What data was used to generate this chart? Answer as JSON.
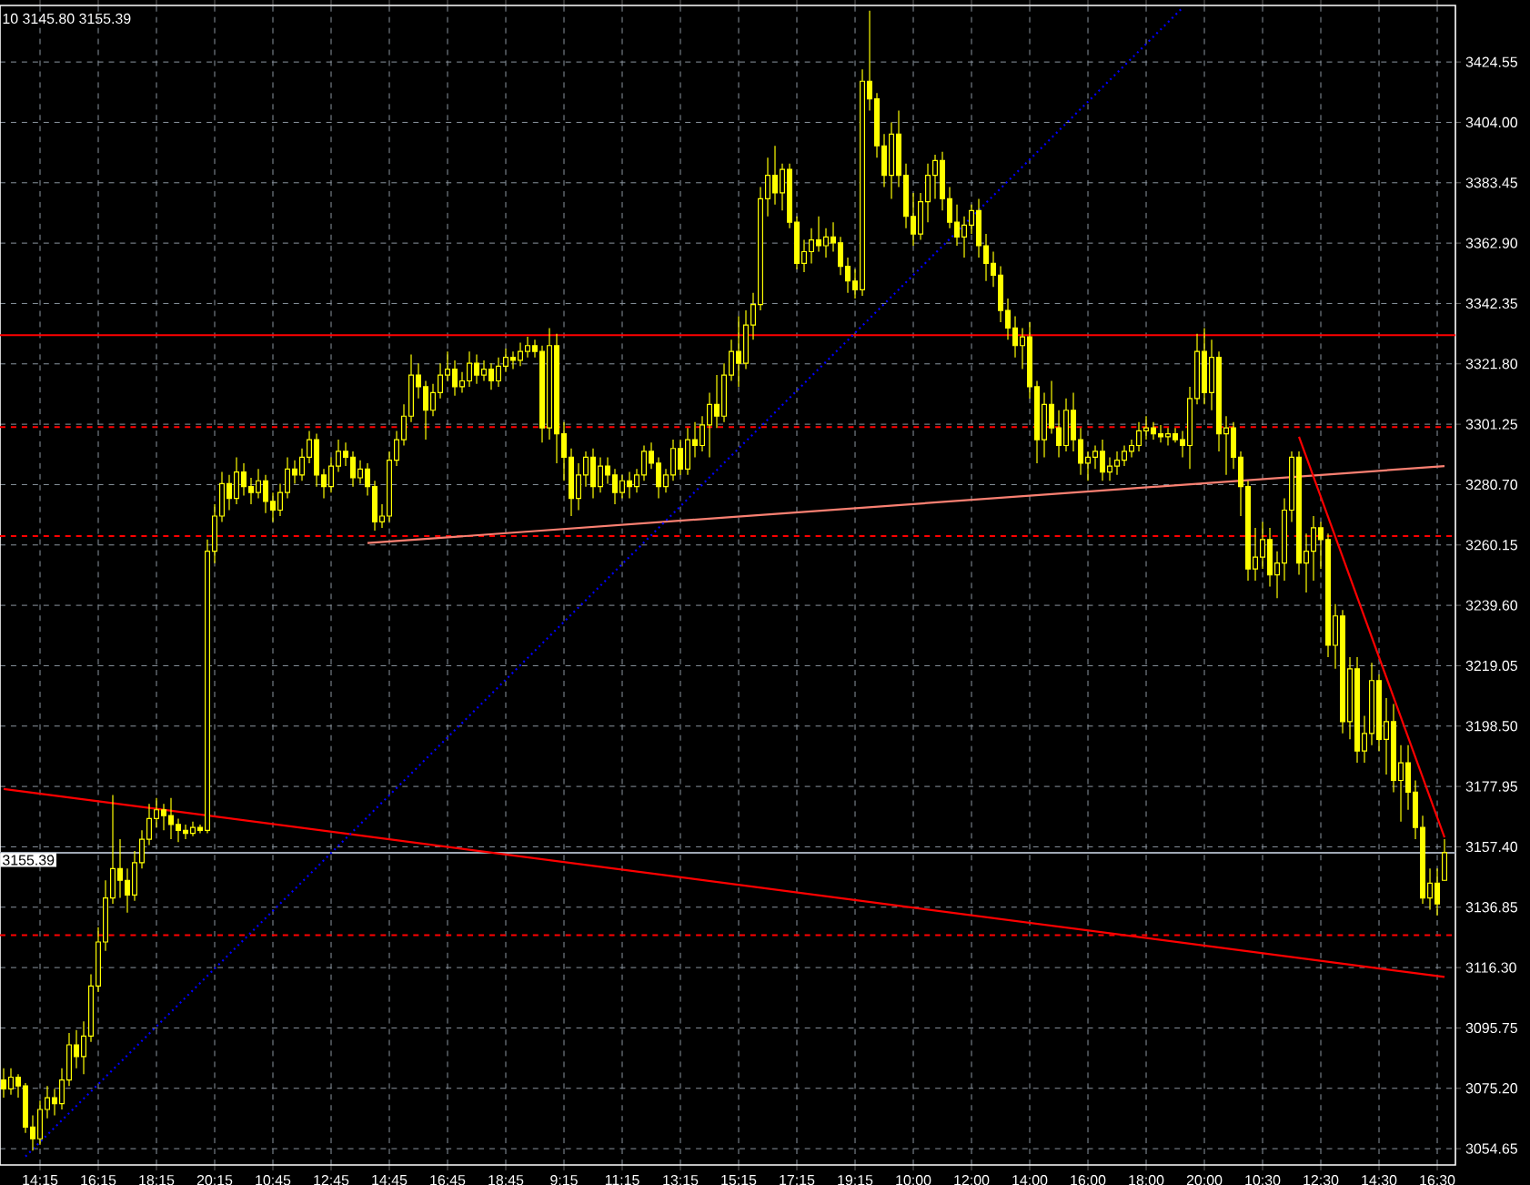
{
  "chart_data": {
    "type": "candlestick",
    "color": "#ffff00",
    "categories": [
      null,
      null,
      null,
      null,
      null,
      "14:15",
      null,
      null,
      null,
      null,
      null,
      null,
      null,
      "16:15",
      null,
      null,
      null,
      null,
      null,
      null,
      null,
      "18:15",
      null,
      null,
      null,
      null,
      null,
      null,
      null,
      "20:15",
      null,
      null,
      null,
      null,
      null,
      null,
      null,
      "10:45",
      null,
      null,
      null,
      null,
      null,
      null,
      null,
      "12:45",
      null,
      null,
      null,
      null,
      null,
      null,
      null,
      "14:45",
      null,
      null,
      null,
      null,
      null,
      null,
      null,
      "16:45",
      null,
      null,
      null,
      null,
      null,
      null,
      null,
      "18:45",
      null,
      null,
      null,
      null,
      null,
      null,
      null,
      "9:15",
      null,
      null,
      null,
      null,
      null,
      null,
      null,
      "11:15",
      null,
      null,
      null,
      null,
      null,
      null,
      null,
      "13:15",
      null,
      null,
      null,
      null,
      null,
      null,
      null,
      "15:15",
      null,
      null,
      null,
      null,
      null,
      null,
      null,
      "17:15",
      null,
      null,
      null,
      null,
      null,
      null,
      null,
      "19:15",
      null,
      null,
      null,
      null,
      null,
      null,
      null,
      "10:00",
      null,
      null,
      null,
      null,
      null,
      null,
      null,
      "12:00",
      null,
      null,
      null,
      null,
      null,
      null,
      null,
      "14:00",
      null,
      null,
      null,
      null,
      null,
      null,
      null,
      "16:00",
      null,
      null,
      null,
      null,
      null,
      null,
      null,
      "18:00",
      null,
      null,
      null,
      null,
      null,
      null,
      null,
      "20:00",
      null,
      null,
      null,
      null,
      null,
      null,
      null,
      "10:30",
      null,
      null,
      null,
      null,
      null,
      null,
      null,
      "12:30",
      null,
      null,
      null,
      null,
      null,
      null,
      null,
      "14:30",
      null,
      null,
      null,
      null,
      null,
      null,
      null,
      "16:30",
      null
    ],
    "ohlc": [
      [
        3078,
        3082,
        3072,
        3075
      ],
      [
        3075,
        3082,
        3073,
        3079
      ],
      [
        3079,
        3080,
        3072,
        3076
      ],
      [
        3076,
        3077,
        3060,
        3062
      ],
      [
        3062,
        3066,
        3054,
        3058
      ],
      [
        3058,
        3071,
        3056,
        3068
      ],
      [
        3068,
        3076,
        3065,
        3072
      ],
      [
        3072,
        3075,
        3066,
        3070
      ],
      [
        3070,
        3082,
        3068,
        3078
      ],
      [
        3078,
        3094,
        3076,
        3090
      ],
      [
        3090,
        3095,
        3082,
        3086
      ],
      [
        3086,
        3098,
        3080,
        3093
      ],
      [
        3093,
        3114,
        3091,
        3110
      ],
      [
        3110,
        3130,
        3108,
        3125
      ],
      [
        3125,
        3146,
        3122,
        3140
      ],
      [
        3140,
        3175,
        3138,
        3150
      ],
      [
        3150,
        3160,
        3140,
        3146
      ],
      [
        3146,
        3150,
        3135,
        3141
      ],
      [
        3141,
        3156,
        3139,
        3152
      ],
      [
        3152,
        3163,
        3150,
        3160
      ],
      [
        3160,
        3172,
        3158,
        3167
      ],
      [
        3167,
        3174,
        3164,
        3170
      ],
      [
        3170,
        3172,
        3163,
        3168
      ],
      [
        3168,
        3174,
        3160,
        3165
      ],
      [
        3165,
        3167,
        3159,
        3163
      ],
      [
        3163,
        3165,
        3160,
        3162
      ],
      [
        3162,
        3166,
        3161,
        3164
      ],
      [
        3164,
        3165,
        3162,
        3163
      ],
      [
        3163,
        3262,
        3162,
        3258
      ],
      [
        3258,
        3274,
        3254,
        3270
      ],
      [
        3270,
        3285,
        3268,
        3281
      ],
      [
        3281,
        3284,
        3272,
        3276
      ],
      [
        3276,
        3290,
        3274,
        3285
      ],
      [
        3285,
        3288,
        3277,
        3280
      ],
      [
        3280,
        3283,
        3274,
        3278
      ],
      [
        3278,
        3286,
        3276,
        3282
      ],
      [
        3282,
        3284,
        3271,
        3275
      ],
      [
        3275,
        3278,
        3268,
        3272
      ],
      [
        3272,
        3281,
        3270,
        3278
      ],
      [
        3278,
        3290,
        3276,
        3286
      ],
      [
        3286,
        3289,
        3281,
        3284
      ],
      [
        3284,
        3293,
        3282,
        3290
      ],
      [
        3290,
        3299,
        3288,
        3296
      ],
      [
        3296,
        3298,
        3280,
        3284
      ],
      [
        3284,
        3286,
        3276,
        3280
      ],
      [
        3280,
        3290,
        3278,
        3287
      ],
      [
        3287,
        3296,
        3285,
        3292
      ],
      [
        3292,
        3295,
        3287,
        3290
      ],
      [
        3290,
        3292,
        3280,
        3283
      ],
      [
        3283,
        3289,
        3281,
        3286
      ],
      [
        3286,
        3288,
        3277,
        3280
      ],
      [
        3280,
        3282,
        3265,
        3268
      ],
      [
        3268,
        3274,
        3266,
        3270
      ],
      [
        3270,
        3292,
        3268,
        3289
      ],
      [
        3289,
        3299,
        3287,
        3296
      ],
      [
        3296,
        3308,
        3294,
        3304
      ],
      [
        3304,
        3325,
        3302,
        3318
      ],
      [
        3318,
        3322,
        3310,
        3314
      ],
      [
        3314,
        3316,
        3296,
        3306
      ],
      [
        3306,
        3315,
        3304,
        3312
      ],
      [
        3312,
        3322,
        3310,
        3318
      ],
      [
        3318,
        3326,
        3316,
        3320
      ],
      [
        3320,
        3323,
        3311,
        3314
      ],
      [
        3314,
        3319,
        3312,
        3316
      ],
      [
        3316,
        3326,
        3314,
        3322
      ],
      [
        3322,
        3325,
        3315,
        3318
      ],
      [
        3318,
        3323,
        3316,
        3320
      ],
      [
        3320,
        3322,
        3313,
        3316
      ],
      [
        3316,
        3324,
        3314,
        3321
      ],
      [
        3321,
        3327,
        3319,
        3324
      ],
      [
        3324,
        3326,
        3320,
        3323
      ],
      [
        3323,
        3329,
        3321,
        3326
      ],
      [
        3326,
        3331,
        3324,
        3328
      ],
      [
        3328,
        3330,
        3324,
        3326
      ],
      [
        3326,
        3328,
        3295,
        3300
      ],
      [
        3300,
        3334,
        3296,
        3328
      ],
      [
        3328,
        3332,
        3288,
        3298
      ],
      [
        3298,
        3302,
        3282,
        3290
      ],
      [
        3290,
        3293,
        3270,
        3276
      ],
      [
        3276,
        3288,
        3272,
        3284
      ],
      [
        3284,
        3292,
        3280,
        3290
      ],
      [
        3290,
        3293,
        3276,
        3280
      ],
      [
        3280,
        3290,
        3278,
        3287
      ],
      [
        3287,
        3290,
        3281,
        3284
      ],
      [
        3284,
        3286,
        3274,
        3278
      ],
      [
        3278,
        3284,
        3276,
        3282
      ],
      [
        3282,
        3285,
        3276,
        3280
      ],
      [
        3280,
        3286,
        3278,
        3284
      ],
      [
        3284,
        3294,
        3282,
        3292
      ],
      [
        3292,
        3295,
        3286,
        3288
      ],
      [
        3288,
        3290,
        3276,
        3280
      ],
      [
        3280,
        3286,
        3278,
        3284
      ],
      [
        3284,
        3296,
        3282,
        3293
      ],
      [
        3293,
        3296,
        3284,
        3286
      ],
      [
        3286,
        3300,
        3284,
        3296
      ],
      [
        3296,
        3302,
        3290,
        3294
      ],
      [
        3294,
        3304,
        3292,
        3301
      ],
      [
        3301,
        3312,
        3290,
        3308
      ],
      [
        3308,
        3318,
        3300,
        3304
      ],
      [
        3304,
        3322,
        3302,
        3318
      ],
      [
        3318,
        3330,
        3316,
        3326
      ],
      [
        3326,
        3338,
        3314,
        3322
      ],
      [
        3322,
        3340,
        3320,
        3335
      ],
      [
        3335,
        3346,
        3330,
        3342
      ],
      [
        3342,
        3382,
        3340,
        3378
      ],
      [
        3378,
        3392,
        3372,
        3386
      ],
      [
        3386,
        3396,
        3376,
        3380
      ],
      [
        3380,
        3390,
        3374,
        3388
      ],
      [
        3388,
        3390,
        3368,
        3370
      ],
      [
        3370,
        3372,
        3354,
        3356
      ],
      [
        3356,
        3364,
        3353,
        3360
      ],
      [
        3360,
        3368,
        3356,
        3364
      ],
      [
        3364,
        3372,
        3360,
        3362
      ],
      [
        3362,
        3368,
        3358,
        3365
      ],
      [
        3365,
        3370,
        3360,
        3363
      ],
      [
        3363,
        3365,
        3352,
        3355
      ],
      [
        3355,
        3358,
        3346,
        3350
      ],
      [
        3350,
        3354,
        3344,
        3347
      ],
      [
        3347,
        3422,
        3345,
        3418
      ],
      [
        3418,
        3442,
        3408,
        3412
      ],
      [
        3412,
        3414,
        3392,
        3396
      ],
      [
        3396,
        3400,
        3382,
        3386
      ],
      [
        3386,
        3404,
        3378,
        3400
      ],
      [
        3400,
        3408,
        3382,
        3386
      ],
      [
        3386,
        3390,
        3368,
        3372
      ],
      [
        3372,
        3380,
        3362,
        3366
      ],
      [
        3366,
        3380,
        3364,
        3377
      ],
      [
        3377,
        3390,
        3370,
        3386
      ],
      [
        3386,
        3393,
        3378,
        3391
      ],
      [
        3391,
        3394,
        3374,
        3378
      ],
      [
        3378,
        3382,
        3368,
        3370
      ],
      [
        3370,
        3376,
        3362,
        3365
      ],
      [
        3365,
        3372,
        3358,
        3369
      ],
      [
        3369,
        3376,
        3366,
        3374
      ],
      [
        3374,
        3378,
        3358,
        3362
      ],
      [
        3362,
        3366,
        3350,
        3356
      ],
      [
        3356,
        3360,
        3348,
        3352
      ],
      [
        3352,
        3355,
        3336,
        3340
      ],
      [
        3340,
        3344,
        3330,
        3334
      ],
      [
        3334,
        3338,
        3324,
        3328
      ],
      [
        3328,
        3334,
        3320,
        3331
      ],
      [
        3331,
        3336,
        3310,
        3314
      ],
      [
        3314,
        3316,
        3288,
        3296
      ],
      [
        3296,
        3312,
        3290,
        3308
      ],
      [
        3308,
        3316,
        3298,
        3300
      ],
      [
        3300,
        3306,
        3290,
        3294
      ],
      [
        3294,
        3310,
        3292,
        3306
      ],
      [
        3306,
        3312,
        3292,
        3296
      ],
      [
        3296,
        3300,
        3284,
        3288
      ],
      [
        3288,
        3292,
        3282,
        3290
      ],
      [
        3290,
        3294,
        3286,
        3292
      ],
      [
        3292,
        3296,
        3282,
        3285
      ],
      [
        3285,
        3290,
        3282,
        3287
      ],
      [
        3287,
        3292,
        3284,
        3289
      ],
      [
        3289,
        3294,
        3287,
        3292
      ],
      [
        3292,
        3296,
        3290,
        3294
      ],
      [
        3294,
        3302,
        3292,
        3299
      ],
      [
        3299,
        3304,
        3296,
        3300
      ],
      [
        3300,
        3302,
        3296,
        3298
      ],
      [
        3298,
        3301,
        3295,
        3297
      ],
      [
        3297,
        3300,
        3294,
        3298
      ],
      [
        3298,
        3300,
        3295,
        3296
      ],
      [
        3296,
        3299,
        3290,
        3294
      ],
      [
        3294,
        3314,
        3286,
        3310
      ],
      [
        3310,
        3332,
        3308,
        3326
      ],
      [
        3326,
        3334,
        3308,
        3312
      ],
      [
        3312,
        3330,
        3306,
        3324
      ],
      [
        3324,
        3326,
        3292,
        3298
      ],
      [
        3298,
        3304,
        3284,
        3300
      ],
      [
        3300,
        3302,
        3286,
        3290
      ],
      [
        3290,
        3292,
        3270,
        3280
      ],
      [
        3280,
        3282,
        3248,
        3252
      ],
      [
        3252,
        3266,
        3248,
        3256
      ],
      [
        3256,
        3268,
        3252,
        3262
      ],
      [
        3262,
        3266,
        3246,
        3250
      ],
      [
        3250,
        3258,
        3242,
        3254
      ],
      [
        3254,
        3276,
        3248,
        3272
      ],
      [
        3272,
        3292,
        3268,
        3290
      ],
      [
        3290,
        3292,
        3250,
        3254
      ],
      [
        3254,
        3264,
        3244,
        3258
      ],
      [
        3258,
        3270,
        3248,
        3266
      ],
      [
        3266,
        3268,
        3252,
        3262
      ],
      [
        3262,
        3264,
        3222,
        3226
      ],
      [
        3226,
        3240,
        3218,
        3236
      ],
      [
        3236,
        3238,
        3196,
        3200
      ],
      [
        3200,
        3222,
        3194,
        3218
      ],
      [
        3218,
        3222,
        3186,
        3190
      ],
      [
        3190,
        3202,
        3186,
        3196
      ],
      [
        3196,
        3220,
        3192,
        3214
      ],
      [
        3214,
        3216,
        3190,
        3194
      ],
      [
        3194,
        3208,
        3182,
        3200
      ],
      [
        3200,
        3206,
        3176,
        3180
      ],
      [
        3180,
        3192,
        3166,
        3186
      ],
      [
        3186,
        3192,
        3170,
        3176
      ],
      [
        3176,
        3180,
        3160,
        3164
      ],
      [
        3164,
        3168,
        3138,
        3140
      ],
      [
        3140,
        3150,
        3136,
        3145
      ],
      [
        3145,
        3150,
        3134,
        3138
      ],
      [
        3146,
        3160,
        3145.8,
        3155.39
      ]
    ],
    "series": [
      {
        "type": "line",
        "color": "#ff0000",
        "line_style": "solid",
        "values": [
          3177.1,
          null,
          null,
          null,
          null,
          null,
          null,
          null,
          null,
          null,
          null,
          null,
          null,
          null,
          null,
          null,
          null,
          null,
          null,
          null,
          null,
          null,
          null,
          null,
          null,
          null,
          null,
          null,
          null,
          null,
          null,
          null,
          null,
          null,
          null,
          null,
          null,
          null,
          null,
          null,
          null,
          null,
          null,
          null,
          null,
          null,
          null,
          null,
          null,
          null,
          null,
          null,
          null,
          null,
          null,
          null,
          null,
          null,
          null,
          null,
          null,
          null,
          null,
          null,
          null,
          null,
          null,
          null,
          null,
          null,
          null,
          null,
          null,
          null,
          null,
          null,
          null,
          null,
          null,
          null,
          null,
          null,
          null,
          null,
          null,
          null,
          null,
          null,
          null,
          null,
          null,
          null,
          null,
          null,
          null,
          null,
          null,
          null,
          null,
          null,
          null,
          null,
          null,
          null,
          null,
          null,
          null,
          null,
          null,
          null,
          null,
          null,
          null,
          null,
          null,
          null,
          null,
          null,
          null,
          null,
          null,
          null,
          null,
          null,
          null,
          null,
          null,
          null,
          null,
          null,
          null,
          null,
          null,
          null,
          null,
          null,
          null,
          null,
          null,
          null,
          null,
          null,
          null,
          null,
          null,
          null,
          null,
          null,
          null,
          null,
          null,
          null,
          null,
          null,
          null,
          null,
          null,
          null,
          null,
          null,
          null,
          null,
          null,
          null,
          null,
          null,
          null,
          null,
          null,
          null,
          null,
          null,
          null,
          null,
          null,
          null,
          null,
          null,
          null,
          null,
          null,
          null,
          null,
          null,
          null,
          null,
          null,
          null,
          null,
          null,
          null,
          null,
          null,
          null,
          null,
          null,
          null,
          null,
          3113.1
        ]
      },
      {
        "type": "line",
        "color": "#fa8072",
        "line_style": "solid",
        "values": [
          null,
          null,
          null,
          null,
          null,
          null,
          null,
          null,
          null,
          null,
          null,
          null,
          null,
          null,
          null,
          null,
          null,
          null,
          null,
          null,
          null,
          null,
          null,
          null,
          null,
          null,
          null,
          null,
          null,
          null,
          null,
          null,
          null,
          null,
          null,
          null,
          null,
          null,
          null,
          null,
          null,
          null,
          null,
          null,
          null,
          null,
          null,
          null,
          null,
          null,
          3260.8,
          null,
          null,
          null,
          null,
          null,
          null,
          null,
          null,
          null,
          null,
          null,
          null,
          null,
          null,
          null,
          null,
          null,
          null,
          null,
          null,
          null,
          null,
          null,
          null,
          null,
          null,
          null,
          null,
          null,
          null,
          null,
          null,
          null,
          null,
          null,
          null,
          null,
          null,
          null,
          null,
          null,
          null,
          null,
          null,
          null,
          null,
          null,
          null,
          null,
          null,
          null,
          null,
          null,
          null,
          null,
          null,
          null,
          null,
          null,
          null,
          null,
          null,
          null,
          null,
          null,
          null,
          null,
          null,
          null,
          null,
          null,
          null,
          null,
          null,
          null,
          null,
          null,
          null,
          null,
          null,
          null,
          null,
          null,
          null,
          null,
          null,
          null,
          null,
          null,
          null,
          null,
          null,
          null,
          null,
          null,
          null,
          null,
          null,
          null,
          null,
          null,
          null,
          null,
          null,
          null,
          null,
          null,
          null,
          null,
          null,
          null,
          null,
          null,
          null,
          null,
          null,
          null,
          null,
          null,
          null,
          null,
          null,
          null,
          null,
          null,
          null,
          null,
          null,
          null,
          null,
          null,
          null,
          null,
          null,
          null,
          null,
          null,
          null,
          null,
          null,
          null,
          null,
          null,
          null,
          null,
          null,
          null,
          3287.0
        ]
      },
      {
        "type": "line",
        "color": "#0000ff",
        "line_style": "dotted",
        "values": [
          null,
          null,
          null,
          3052,
          null,
          null,
          null,
          null,
          null,
          null,
          null,
          null,
          null,
          null,
          null,
          null,
          null,
          null,
          null,
          null,
          null,
          null,
          null,
          null,
          null,
          null,
          null,
          null,
          null,
          null,
          null,
          null,
          null,
          null,
          null,
          null,
          null,
          null,
          null,
          null,
          null,
          null,
          null,
          null,
          null,
          null,
          null,
          null,
          null,
          null,
          null,
          null,
          null,
          null,
          null,
          null,
          null,
          null,
          null,
          null,
          null,
          null,
          null,
          null,
          null,
          null,
          null,
          null,
          null,
          null,
          null,
          null,
          null,
          null,
          null,
          null,
          null,
          null,
          null,
          null,
          null,
          null,
          null,
          null,
          null,
          null,
          null,
          null,
          null,
          null,
          null,
          null,
          null,
          null,
          null,
          null,
          null,
          null,
          null,
          null,
          null,
          null,
          null,
          null,
          null,
          null,
          null,
          null,
          null,
          null,
          null,
          null,
          null,
          null,
          null,
          null,
          null,
          null,
          null,
          null,
          null,
          null,
          null,
          null,
          null,
          null,
          null,
          null,
          null,
          null,
          null,
          null,
          null,
          null,
          null,
          null,
          null,
          null,
          null,
          null,
          null,
          null,
          null,
          null,
          null,
          null,
          null,
          null,
          null,
          null,
          null,
          null,
          null,
          null,
          null,
          null,
          null,
          null,
          null,
          null,
          null,
          null,
          3443,
          null,
          null,
          null,
          null,
          null,
          null,
          null,
          null,
          null,
          null,
          null,
          null,
          null,
          null,
          null,
          null,
          null,
          null,
          null,
          null,
          null,
          null,
          null,
          null,
          null,
          null,
          null,
          null,
          null,
          null,
          null,
          null,
          null,
          null,
          null,
          null
        ]
      },
      {
        "type": "line",
        "color": "#ff0000",
        "line_style": "solid",
        "values": [
          null,
          null,
          null,
          null,
          null,
          null,
          null,
          null,
          null,
          null,
          null,
          null,
          null,
          null,
          null,
          null,
          null,
          null,
          null,
          null,
          null,
          null,
          null,
          null,
          null,
          null,
          null,
          null,
          null,
          null,
          null,
          null,
          null,
          null,
          null,
          null,
          null,
          null,
          null,
          null,
          null,
          null,
          null,
          null,
          null,
          null,
          null,
          null,
          null,
          null,
          null,
          null,
          null,
          null,
          null,
          null,
          null,
          null,
          null,
          null,
          null,
          null,
          null,
          null,
          null,
          null,
          null,
          null,
          null,
          null,
          null,
          null,
          null,
          null,
          null,
          null,
          null,
          null,
          null,
          null,
          null,
          null,
          null,
          null,
          null,
          null,
          null,
          null,
          null,
          null,
          null,
          null,
          null,
          null,
          null,
          null,
          null,
          null,
          null,
          null,
          null,
          null,
          null,
          null,
          null,
          null,
          null,
          null,
          null,
          null,
          null,
          null,
          null,
          null,
          null,
          null,
          null,
          null,
          null,
          null,
          null,
          null,
          null,
          null,
          null,
          null,
          null,
          null,
          null,
          null,
          null,
          null,
          null,
          null,
          null,
          null,
          null,
          null,
          null,
          null,
          null,
          null,
          null,
          null,
          null,
          null,
          null,
          null,
          null,
          null,
          null,
          null,
          null,
          null,
          null,
          null,
          null,
          null,
          null,
          null,
          null,
          null,
          null,
          null,
          null,
          null,
          null,
          null,
          null,
          null,
          null,
          null,
          null,
          null,
          null,
          null,
          null,
          null,
          3297,
          null,
          null,
          null,
          null,
          null,
          null,
          null,
          null,
          null,
          null,
          null,
          null,
          null,
          null,
          null,
          null,
          null,
          null,
          null,
          3160.6
        ]
      }
    ],
    "ylim": [
      3049.1,
      3443.8
    ],
    "yticks": [
      3054.65,
      {
        "value": 3075.2,
        "label": "3075.20"
      },
      3095.75,
      {
        "value": 3116.3,
        "label": "3116.30"
      },
      3136.85,
      {
        "value": 3157.4,
        "label": "3157.40"
      },
      3177.95,
      {
        "value": 3198.5,
        "label": "3198.50"
      },
      3219.05,
      {
        "value": 3239.6,
        "label": "3239.60"
      },
      3260.15,
      {
        "value": 3280.7,
        "label": "3280.70"
      },
      3301.25,
      {
        "value": 3321.8,
        "label": "3321.80"
      },
      3342.35,
      {
        "value": 3362.9,
        "label": "3362.90"
      },
      3383.45,
      {
        "value": 3404,
        "label": "3404.00"
      },
      3424.55
    ],
    "ref_lines": [
      {
        "axis": "y",
        "value": 3155.39,
        "label": "3155.39",
        "color": "#a0a8b4",
        "line_style": "solid"
      },
      {
        "axis": "y",
        "value": 3331.6,
        "color": "#ff0000",
        "line_style": "solid"
      },
      {
        "axis": "y",
        "value": 3300.3,
        "color": "#ff0000",
        "line_style": "dashed"
      },
      {
        "axis": "y",
        "value": 3263.2,
        "color": "#ff0000",
        "line_style": "dashed"
      },
      {
        "axis": "y",
        "value": 3127.3,
        "color": "#ff0000",
        "line_style": "dashed"
      }
    ],
    "annotations": [
      "10 3145.80 3155.39"
    ],
    "grid": true
  }
}
